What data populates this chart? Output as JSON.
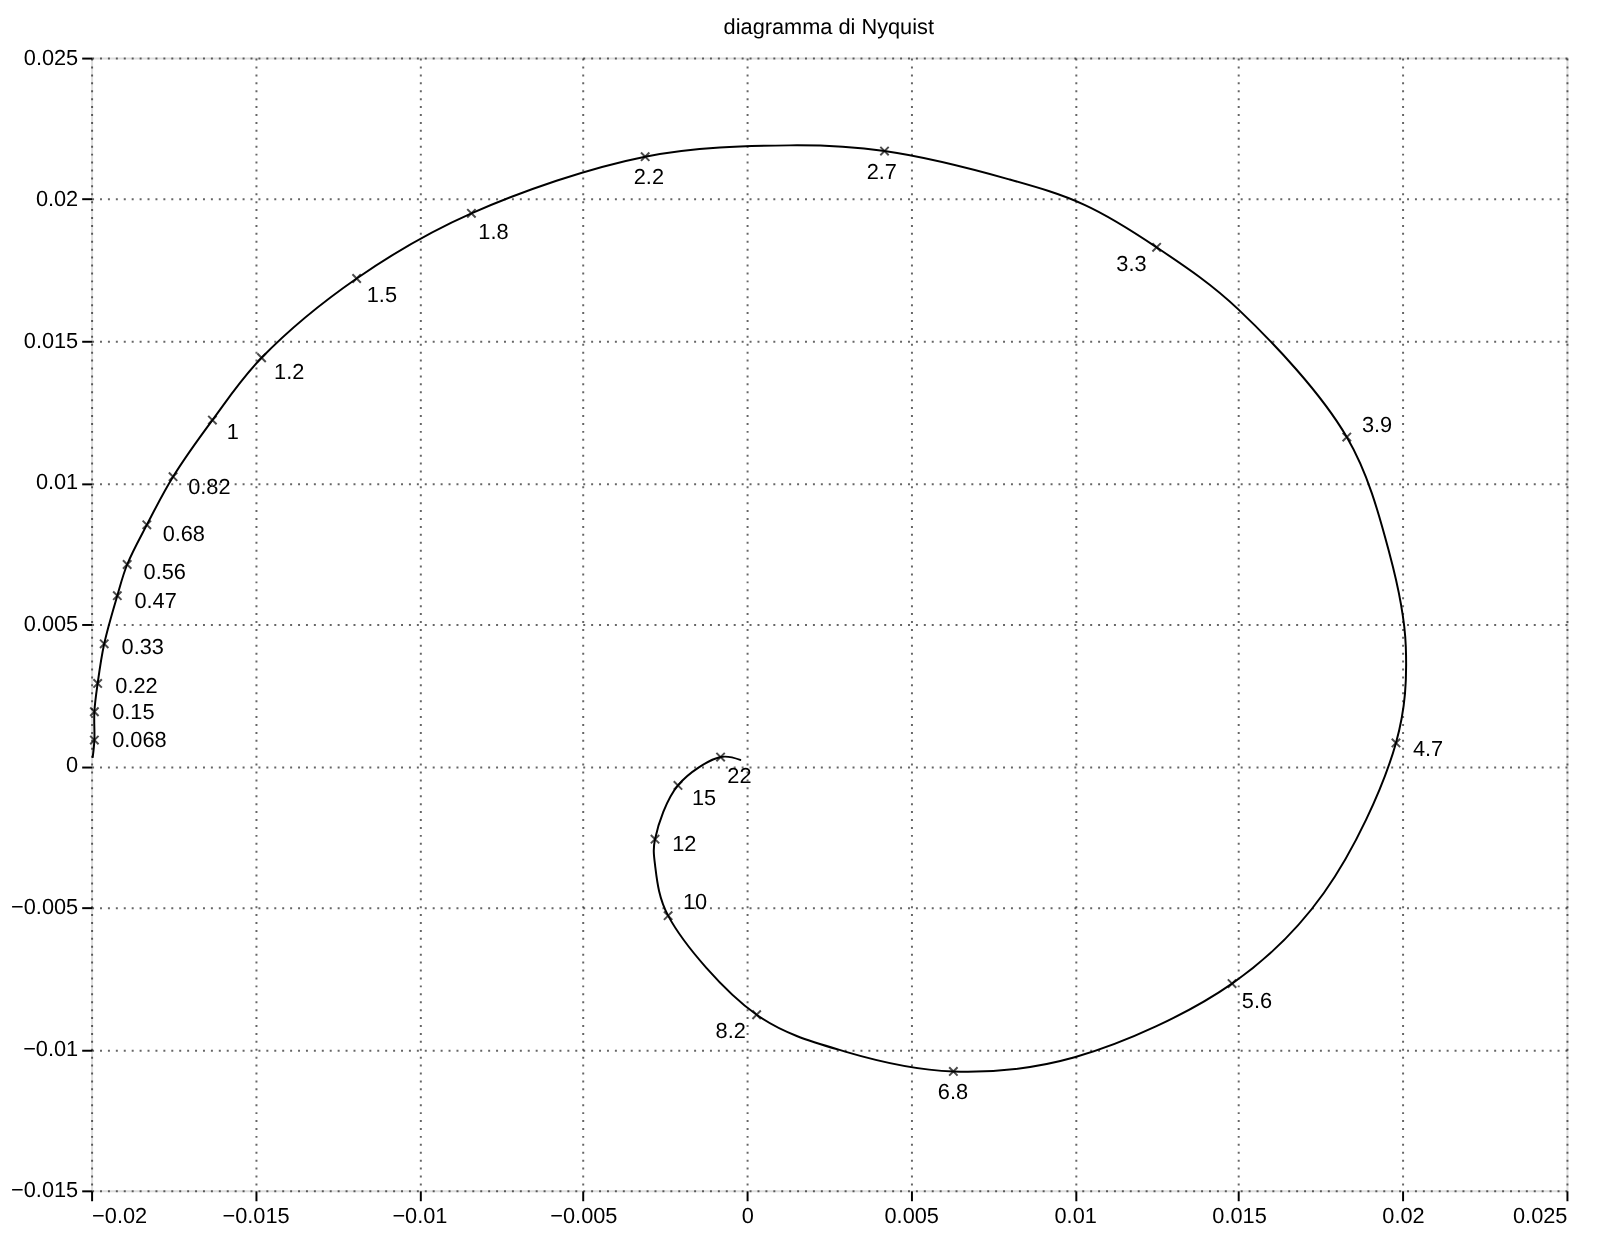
{
  "chart_data": {
    "type": "line",
    "title": "diagramma di Nyquist",
    "xlim": [
      -0.02,
      0.025
    ],
    "xticks": [
      -0.02,
      -0.015,
      -0.01,
      -0.005,
      0,
      0.005,
      0.01,
      0.015,
      0.02,
      0.025
    ],
    "ylim": [
      -0.015,
      0.025
    ],
    "yticks": [
      -0.015,
      -0.01,
      -0.005,
      0,
      0.005,
      0.01,
      0.015,
      0.02,
      0.025
    ],
    "grid": true,
    "line_style": "solid",
    "series": [
      {
        "color": "#000000",
        "marker": "none",
        "x": [
          -0.01995,
          -0.0199,
          -0.0199,
          -0.0198,
          -0.0196,
          -0.0192,
          -0.0189,
          -0.0183,
          -0.0175,
          -0.0163,
          -0.0148,
          -0.0119,
          -0.0084,
          -0.0031,
          0.0013,
          0.0042,
          0.008,
          0.0103,
          0.0125,
          0.015,
          0.0183,
          0.0196,
          0.0201,
          0.0198,
          0.0176,
          0.0148,
          0.01,
          0.0063,
          0.003,
          0.0003,
          -0.0024,
          -0.0028,
          -0.0028,
          -0.0021,
          -0.0008,
          -0.0002
        ],
        "values": [
          0.0003,
          0.0009,
          0.0019,
          0.0029,
          0.0043,
          0.006,
          0.0071,
          0.0085,
          0.0102,
          0.0122,
          0.0144,
          0.0172,
          0.0195,
          0.0215,
          0.0219,
          0.0217,
          0.0207,
          0.0198,
          0.0183,
          0.0161,
          0.0116,
          0.0075,
          0.0042,
          0.0008,
          -0.0045,
          -0.0077,
          -0.0103,
          -0.0108,
          -0.0101,
          -0.0088,
          -0.0053,
          -0.0035,
          -0.0026,
          -0.0007,
          0.0003,
          0.0002
        ]
      },
      {
        "type": "scatter",
        "color": "#000000",
        "marker": "cross",
        "x": [
          -0.0199,
          -0.0199,
          -0.0198,
          -0.0196,
          -0.0192,
          -0.0189,
          -0.0183,
          -0.0175,
          -0.0163,
          -0.0148,
          -0.0119,
          -0.0084,
          -0.0031,
          0.0042,
          0.0125,
          0.0183,
          0.0198,
          0.0148,
          0.0063,
          0.0003,
          -0.0024,
          -0.0028,
          -0.0021,
          -0.0008
        ],
        "values": [
          0.0009,
          0.0019,
          0.0029,
          0.0043,
          0.006,
          0.0071,
          0.0085,
          0.0102,
          0.0122,
          0.0144,
          0.0172,
          0.0195,
          0.0215,
          0.0217,
          0.0183,
          0.0116,
          0.0008,
          -0.0077,
          -0.0108,
          -0.0088,
          -0.0053,
          -0.0026,
          -0.0007,
          0.0003
        ]
      }
    ],
    "annotations": [
      {
        "text": "0.068",
        "x": -0.0199,
        "y": 0.0009
      },
      {
        "text": "0.15",
        "x": -0.0199,
        "y": 0.0019
      },
      {
        "text": "0.22",
        "x": -0.0198,
        "y": 0.0029
      },
      {
        "text": "0.33",
        "x": -0.0196,
        "y": 0.0043
      },
      {
        "text": "0.47",
        "x": -0.0192,
        "y": 0.006
      },
      {
        "text": "0.56",
        "x": -0.0189,
        "y": 0.0071
      },
      {
        "text": "0.68",
        "x": -0.0183,
        "y": 0.0085
      },
      {
        "text": "0.82",
        "x": -0.0175,
        "y": 0.0102
      },
      {
        "text": "1",
        "x": -0.0163,
        "y": 0.0122
      },
      {
        "text": "1.2",
        "x": -0.0148,
        "y": 0.0144
      },
      {
        "text": "1.5",
        "x": -0.0119,
        "y": 0.0172
      },
      {
        "text": "1.8",
        "x": -0.0084,
        "y": 0.0195
      },
      {
        "text": "2.2",
        "x": -0.0031,
        "y": 0.0215
      },
      {
        "text": "2.7",
        "x": 0.0042,
        "y": 0.0217
      },
      {
        "text": "3.3",
        "x": 0.0125,
        "y": 0.0183
      },
      {
        "text": "3.9",
        "x": 0.0183,
        "y": 0.0116
      },
      {
        "text": "4.7",
        "x": 0.0198,
        "y": 0.0008
      },
      {
        "text": "5.6",
        "x": 0.0148,
        "y": -0.0077
      },
      {
        "text": "6.8",
        "x": 0.0063,
        "y": -0.0108
      },
      {
        "text": "8.2",
        "x": 0.0003,
        "y": -0.0088
      },
      {
        "text": "10",
        "x": -0.0024,
        "y": -0.0053
      },
      {
        "text": "12",
        "x": -0.0028,
        "y": -0.0026
      },
      {
        "text": "15",
        "x": -0.0021,
        "y": -0.0007
      },
      {
        "text": "22",
        "x": -0.0008,
        "y": 0.0003
      }
    ]
  }
}
